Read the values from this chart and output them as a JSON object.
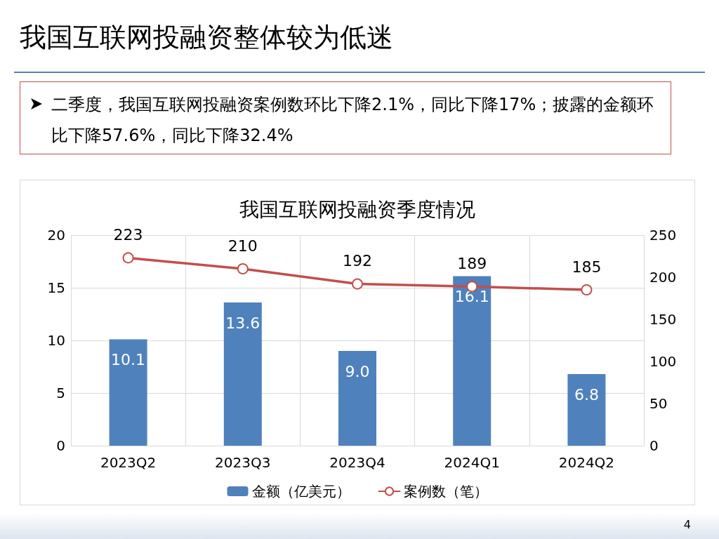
{
  "chart_data": {
    "type": "bar",
    "title": "我国互联网投融资季度情况",
    "annotations": [
      "我国互联网投融资整体较为低迷",
      "二季度，我国互联网投融资案例数环比下降2.1%，同比下降17%；披露的金额环比下降57.6%，同比下降32.4%",
      "4"
    ],
    "categories": [
      "2023Q2",
      "2023Q3",
      "2023Q4",
      "2024Q1",
      "2024Q2"
    ],
    "series": [
      {
        "name": "金额（亿美元）",
        "color": "#4f81bd",
        "values": [
          10.1,
          13.6,
          9.0,
          16.1,
          6.8
        ],
        "value_labels": [
          "10.1",
          "13.6",
          "9.0",
          "16.1",
          "6.8"
        ]
      },
      {
        "name": "案例数（笔）",
        "type": "line",
        "axis": "y2",
        "color": "#c0504d",
        "values": [
          223,
          210,
          192,
          189,
          185
        ],
        "value_labels": [
          "223",
          "210",
          "192",
          "189",
          "185"
        ]
      }
    ],
    "ylim": [
      0,
      20
    ],
    "yticks": [
      0,
      5,
      10,
      15,
      20
    ],
    "y2lim": [
      0,
      250
    ],
    "y2ticks": [
      0,
      50,
      100,
      150,
      200,
      250
    ],
    "grid": true,
    "legend": "bottom",
    "marker": "circle",
    "line_style": "solid"
  }
}
